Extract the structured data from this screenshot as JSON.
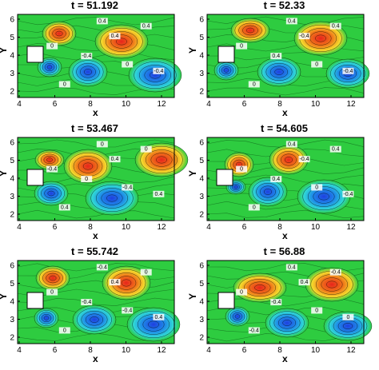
{
  "panels": [
    {
      "title": "t = 51.192",
      "xlabel": "x",
      "ylabel": "Y",
      "xticks": [
        "4",
        "6",
        "8",
        "10",
        "12"
      ],
      "yticks": [
        "2",
        "3",
        "4",
        "5",
        "6"
      ],
      "contour_labels": [
        "0",
        "-0.4",
        "0.4",
        "0",
        "0.4",
        "-0.4",
        "0",
        "0.4"
      ]
    },
    {
      "title": "t = 52.33",
      "xlabel": "x",
      "ylabel": "Y",
      "xticks": [
        "4",
        "6",
        "8",
        "10",
        "12"
      ],
      "yticks": [
        "2",
        "3",
        "4",
        "5",
        "6"
      ],
      "contour_labels": [
        "0",
        "0.4",
        "-0.4",
        "0",
        "0.4",
        "-0.4",
        "0",
        "0.4"
      ]
    },
    {
      "title": "t = 53.467",
      "xlabel": "x",
      "ylabel": "Y",
      "xticks": [
        "4",
        "6",
        "8",
        "10",
        "12"
      ],
      "yticks": [
        "2",
        "3",
        "4",
        "5",
        "6"
      ],
      "contour_labels": [
        "-0.4",
        "0",
        "0.4",
        "-0.4",
        "0",
        "0.4",
        "0.4",
        "0"
      ]
    },
    {
      "title": "t = 54.605",
      "xlabel": "x",
      "ylabel": "Y",
      "xticks": [
        "4",
        "6",
        "8",
        "10",
        "12"
      ],
      "yticks": [
        "2",
        "3",
        "4",
        "5",
        "6"
      ],
      "contour_labels": [
        "0",
        "0.4",
        "-0.4",
        "0",
        "0.4",
        "-0.4",
        "0",
        "0.4"
      ]
    },
    {
      "title": "t = 55.742",
      "xlabel": "x",
      "ylabel": "Y",
      "xticks": [
        "4",
        "6",
        "8",
        "10",
        "12"
      ],
      "yticks": [
        "2",
        "3",
        "4",
        "5",
        "6"
      ],
      "contour_labels": [
        "0",
        "-0.4",
        "0.4",
        "-0.4",
        "0",
        "0.4",
        "0",
        "-0.4"
      ]
    },
    {
      "title": "t = 56.88",
      "xlabel": "x",
      "ylabel": "Y",
      "xticks": [
        "4",
        "6",
        "8",
        "10",
        "12"
      ],
      "yticks": [
        "2",
        "3",
        "4",
        "5",
        "6"
      ],
      "contour_labels": [
        "0",
        "-0.4",
        "0.4",
        "0",
        "-0.4",
        "0",
        "-0.4",
        "0.4"
      ]
    }
  ],
  "colors": {
    "background": "#2ecc40",
    "positive": "#e8241c",
    "negative": "#1f3fe0",
    "mid_warm": "#f5d92c",
    "mid_cool": "#2fd6d6",
    "body": "#ffffff"
  }
}
